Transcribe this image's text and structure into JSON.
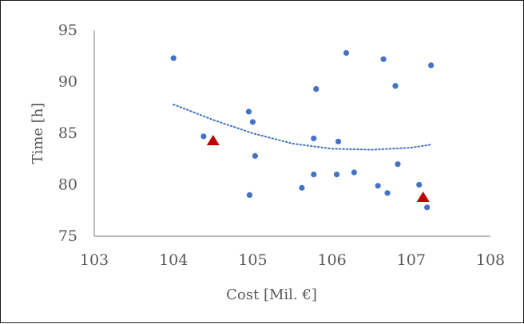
{
  "chart_data": {
    "type": "scatter",
    "title": "",
    "xlabel": "Cost [Mil. €]",
    "ylabel": "Time [h]",
    "xlim": [
      103,
      108
    ],
    "ylim": [
      75,
      95
    ],
    "xticks": [
      103,
      104,
      105,
      106,
      107,
      108
    ],
    "yticks": [
      75,
      80,
      85,
      90,
      95
    ],
    "grid": false,
    "legend": "none",
    "series": [
      {
        "marker": "circle",
        "color": "#4472C4",
        "points": [
          [
            104.0,
            92.3
          ],
          [
            104.38,
            84.7
          ],
          [
            104.95,
            87.1
          ],
          [
            105.0,
            86.1
          ],
          [
            105.03,
            82.8
          ],
          [
            104.96,
            79.0
          ],
          [
            105.62,
            79.7
          ],
          [
            105.77,
            84.5
          ],
          [
            105.77,
            81.0
          ],
          [
            105.8,
            89.3
          ],
          [
            106.06,
            81.0
          ],
          [
            106.08,
            84.2
          ],
          [
            106.18,
            92.8
          ],
          [
            106.28,
            81.2
          ],
          [
            106.58,
            79.9
          ],
          [
            106.65,
            92.2
          ],
          [
            106.7,
            79.2
          ],
          [
            106.8,
            89.6
          ],
          [
            106.83,
            82.0
          ],
          [
            107.1,
            80.0
          ],
          [
            107.2,
            77.8
          ],
          [
            107.25,
            91.6
          ]
        ]
      },
      {
        "marker": "triangle",
        "color": "#C00000",
        "points": [
          [
            104.5,
            84.3
          ],
          [
            107.15,
            78.8
          ]
        ]
      },
      {
        "marker": "trendline",
        "style": "dotted",
        "color": "#4472C4",
        "points": [
          [
            104.0,
            87.8
          ],
          [
            104.5,
            86.3
          ],
          [
            105.0,
            85.0
          ],
          [
            105.5,
            84.0
          ],
          [
            106.0,
            83.5
          ],
          [
            106.5,
            83.4
          ],
          [
            107.0,
            83.6
          ],
          [
            107.25,
            83.9
          ]
        ]
      }
    ]
  }
}
